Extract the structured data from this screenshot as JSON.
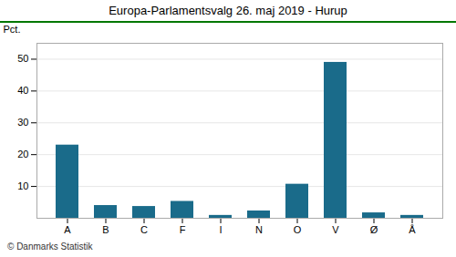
{
  "chart_data": {
    "type": "bar",
    "title": "Europa-Parlamentsvalg 26. maj 2019 - Hurup",
    "ylabel": "Pct.",
    "footer": "© Danmarks Statistik",
    "categories": [
      "A",
      "B",
      "C",
      "F",
      "I",
      "N",
      "O",
      "V",
      "Ø",
      "Å"
    ],
    "values": [
      23.0,
      4.0,
      3.7,
      5.3,
      0.9,
      2.3,
      10.7,
      49.0,
      1.7,
      0.9
    ],
    "color": "#1a6b8a",
    "ylim": [
      0,
      55
    ],
    "yticks": [
      10,
      20,
      30,
      40,
      50
    ],
    "grid": true
  }
}
